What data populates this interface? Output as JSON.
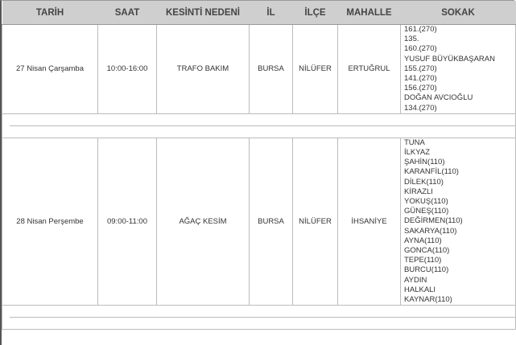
{
  "headers": [
    "TARİH",
    "SAAT",
    "KESİNTİ NEDENİ",
    "İL",
    "İLÇE",
    "MAHALLE",
    "SOKAK"
  ],
  "rows": [
    {
      "tarih": "27 Nisan Çarşamba",
      "saat": "10:00-16:00",
      "neden": "TRAFO BAKIM",
      "il": "BURSA",
      "ilce": "NİLÜFER",
      "mahalle": "ERTUĞRUL",
      "sokak": [
        "161.(270)",
        "135.",
        "160.(270)",
        "YUSUF BÜYÜKBAŞARAN",
        "155.(270)",
        "141.(270)",
        "156.(270)",
        "DOĞAN AVCIOĞLU",
        "134.(270)"
      ]
    },
    {
      "tarih": "28 Nisan Perşembe",
      "saat": "09:00-11:00",
      "neden": "AĞAÇ KESİM",
      "il": "BURSA",
      "ilce": "NİLÜFER",
      "mahalle": "İHSANİYE",
      "sokak": [
        "TUNA",
        "İLKYAZ",
        "ŞAHİN(110)",
        "KARANFİL(110)",
        "DİLEK(110)",
        "KİRAZLI",
        "YOKUŞ(110)",
        "GÜNEŞ(110)",
        "DEĞİRMEN(110)",
        "SAKARYA(110)",
        "AYNA(110)",
        "GONCA(110)",
        "TEPE(110)",
        "BURCU(110)",
        "AYDIN",
        "HALKALI",
        "KAYNAR(110)"
      ]
    }
  ]
}
